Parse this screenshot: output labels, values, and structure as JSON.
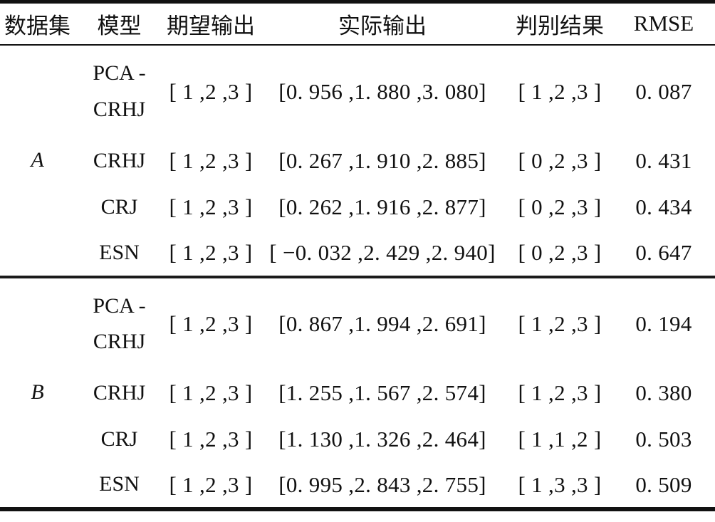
{
  "table": {
    "headers": {
      "dataset": "数据集",
      "model": "模型",
      "expected_output": "期望输出",
      "actual_output": "实际输出",
      "result": "判别结果",
      "rmse": "RMSE"
    },
    "groups": [
      {
        "dataset": "A",
        "rows": [
          {
            "model": "PCA -\nCRHJ",
            "expected": "[ 1 ,2 ,3 ]",
            "actual": "[0. 956 ,1. 880 ,3. 080]",
            "result": "[ 1 ,2 ,3 ]",
            "rmse": "0. 087"
          },
          {
            "model": "CRHJ",
            "expected": "[ 1 ,2 ,3 ]",
            "actual": "[0. 267 ,1. 910 ,2. 885]",
            "result": "[ 0 ,2 ,3 ]",
            "rmse": "0. 431"
          },
          {
            "model": "CRJ",
            "expected": "[ 1 ,2 ,3 ]",
            "actual": "[0. 262 ,1. 916 ,2. 877]",
            "result": "[ 0 ,2 ,3 ]",
            "rmse": "0. 434"
          },
          {
            "model": "ESN",
            "expected": "[ 1 ,2 ,3 ]",
            "actual": "[ −0. 032 ,2. 429 ,2. 940]",
            "result": "[ 0 ,2 ,3 ]",
            "rmse": "0. 647"
          }
        ]
      },
      {
        "dataset": "B",
        "rows": [
          {
            "model": "PCA -\nCRHJ",
            "expected": "[ 1 ,2 ,3 ]",
            "actual": "[0. 867 ,1. 994 ,2. 691]",
            "result": "[ 1 ,2 ,3 ]",
            "rmse": "0. 194"
          },
          {
            "model": "CRHJ",
            "expected": "[ 1 ,2 ,3 ]",
            "actual": "[1. 255 ,1. 567 ,2. 574]",
            "result": "[ 1 ,2 ,3 ]",
            "rmse": "0. 380"
          },
          {
            "model": "CRJ",
            "expected": "[ 1 ,2 ,3 ]",
            "actual": "[1. 130 ,1. 326 ,2. 464]",
            "result": "[ 1 ,1 ,2 ]",
            "rmse": "0. 503"
          },
          {
            "model": "ESN",
            "expected": "[ 1 ,2 ,3 ]",
            "actual": "[0. 995 ,2. 843 ,2. 755]",
            "result": "[ 1 ,3 ,3 ]",
            "rmse": "0. 509"
          }
        ]
      }
    ]
  }
}
